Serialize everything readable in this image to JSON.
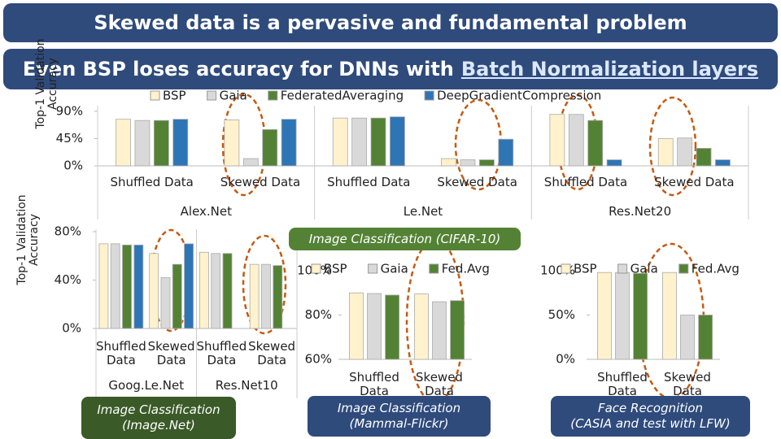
{
  "header": {
    "title": "Skewed data is a pervasive and fundamental problem",
    "subtitle": "Even BSP loses accuracy for DNNs with",
    "subtitle_link": "Batch Normalization layers"
  },
  "chart_data": [
    {
      "type": "bar",
      "categories": [
        "Shuffled Data",
        "Skewed Data",
        "Shuffled Data",
        "Skewed Data",
        "Shuffled Data",
        "Skewed Data"
      ],
      "groups": [
        "Alex.Net",
        "Le.Net",
        "Res.Net20"
      ],
      "series": [
        {
          "name": "BSP",
          "color": "#fff2cc",
          "values": [
            77,
            76,
            79,
            12,
            85,
            45
          ]
        },
        {
          "name": "Gaia",
          "color": "#d9d9d9",
          "values": [
            75,
            12,
            79,
            10,
            85,
            46
          ]
        },
        {
          "name": "FederatedAveraging",
          "color": "#548235",
          "values": [
            75,
            60,
            79,
            10,
            75,
            29
          ]
        },
        {
          "name": "DeepGradientCompression",
          "color": "#2e75b6",
          "values": [
            77,
            77,
            81,
            44,
            10,
            10
          ]
        }
      ],
      "ylim": [
        0,
        90
      ],
      "yticks": [
        {
          "value": 0,
          "label": "0%"
        },
        {
          "value": 45,
          "label": "45%"
        },
        {
          "value": 90,
          "label": "90%"
        }
      ],
      "y_label": [
        "Top-1 Validation",
        "Accuracy"
      ],
      "caption": [
        "Image Classification (CIFAR-10)"
      ]
    },
    {
      "type": "bar",
      "categories": [
        "Shuffled Data",
        "Skewed Data",
        "Shuffled Data",
        "Skewed Data"
      ],
      "groups": [
        "Goog.Le.Net",
        "Res.Net10"
      ],
      "series": [
        {
          "color": "#fff2cc",
          "values": [
            70,
            62,
            63,
            53
          ]
        },
        {
          "color": "#d9d9d9",
          "values": [
            70,
            42,
            62,
            53
          ]
        },
        {
          "color": "#548235",
          "values": [
            69,
            53,
            62,
            52
          ]
        },
        {
          "color": "#2e75b6",
          "values": [
            69,
            70,
            null,
            null
          ]
        }
      ],
      "ylim": [
        0,
        80
      ],
      "yticks": [
        {
          "value": 0,
          "label": "0%"
        },
        {
          "value": 40,
          "label": "40%"
        },
        {
          "value": 80,
          "label": "80%"
        }
      ],
      "y_label": [
        "Top-1 Validation",
        "Accuracy"
      ],
      "caption": [
        "Image Classification",
        "(Image.Net)"
      ]
    },
    {
      "type": "bar",
      "categories": [
        "Shuffled Data",
        "Skewed Data"
      ],
      "series": [
        {
          "name": "BSP",
          "color": "#fff2cc",
          "values": [
            90,
            89.5
          ]
        },
        {
          "name": "Gaia",
          "color": "#d9d9d9",
          "values": [
            89.7,
            86
          ]
        },
        {
          "name": "Fed.Avg",
          "color": "#548235",
          "values": [
            89,
            86.5
          ]
        }
      ],
      "ylim": [
        60,
        100
      ],
      "yticks": [
        {
          "value": 60,
          "label": "60%"
        },
        {
          "value": 80,
          "label": "80%"
        },
        {
          "value": 100,
          "label": "100%"
        }
      ],
      "caption": [
        "Image Classification",
        "(Mammal-Flickr)"
      ]
    },
    {
      "type": "bar",
      "categories": [
        "Shuffled Data",
        "Skewed Data"
      ],
      "series": [
        {
          "name": "BSP",
          "color": "#fff2cc",
          "values": [
            98,
            98
          ]
        },
        {
          "name": "Gaia",
          "color": "#d9d9d9",
          "values": [
            98,
            50
          ]
        },
        {
          "name": "Fed.Avg",
          "color": "#548235",
          "values": [
            97,
            50
          ]
        }
      ],
      "ylim": [
        0,
        100
      ],
      "yticks": [
        {
          "value": 0,
          "label": "0%"
        },
        {
          "value": 50,
          "label": "50%"
        },
        {
          "value": 100,
          "label": "100%"
        }
      ],
      "caption": [
        "Face Recognition",
        "(CASIA and test with LFW)"
      ]
    }
  ]
}
